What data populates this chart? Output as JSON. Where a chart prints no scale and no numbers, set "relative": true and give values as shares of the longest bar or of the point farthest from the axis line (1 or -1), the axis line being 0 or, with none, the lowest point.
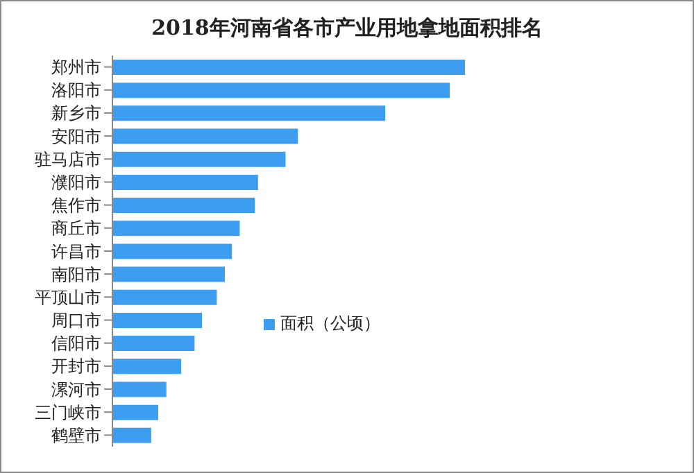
{
  "chart_data": {
    "type": "bar",
    "orientation": "horizontal",
    "relative": true,
    "title": "2018年河南省各市产业用地拿地面积排名",
    "categories": [
      "郑州市",
      "洛阳市",
      "新乡市",
      "安阳市",
      "驻马店市",
      "濮阳市",
      "焦作市",
      "商丘市",
      "许昌市",
      "南阳市",
      "平顶山市",
      "周口市",
      "信阳市",
      "开封市",
      "漯河市",
      "三门峡市",
      "鹤壁市"
    ],
    "series": [
      {
        "name": "面积（公顷）",
        "color": "#3d9df0",
        "values": [
          1,
          0.957,
          0.774,
          0.526,
          0.491,
          0.413,
          0.404,
          0.361,
          0.339,
          0.319,
          0.296,
          0.254,
          0.233,
          0.195,
          0.153,
          0.13,
          0.11
        ]
      }
    ],
    "legend": "right",
    "grid": false
  }
}
